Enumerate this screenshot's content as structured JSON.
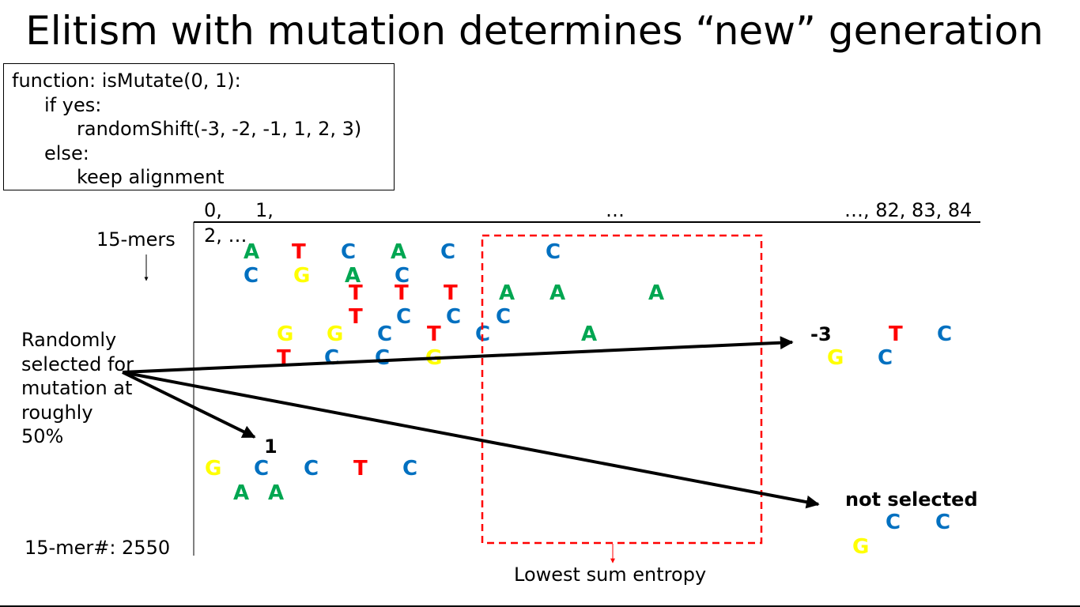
{
  "title": "Elitism with mutation determines “new” generation",
  "pseudocode": {
    "lines": [
      "function:  isMutate(0, 1):",
      "if yes:",
      "randomShift(-3, -2, -1, 1, 2, 3)",
      "else:",
      "keep alignment"
    ]
  },
  "positions": {
    "start": "0,",
    "one": "1,",
    "second_row": "2, …",
    "middle": "…",
    "end": "…, 82, 83, 84"
  },
  "labels": {
    "kmers": "15-mers",
    "random": [
      "Randomly",
      "selected for",
      "mutation at",
      "roughly",
      "50%"
    ],
    "count": "15-mer#: 2550",
    "lowest": "Lowest sum entropy",
    "shift_right": "-3",
    "shift_lower": "1",
    "not_selected": "not selected"
  },
  "colors": {
    "A": "#00a651",
    "T": "#ff0000",
    "C": "#0070c0",
    "G": "#ffff00",
    "dashed_box": "#ff0000"
  },
  "rows": [
    "A",
    "T",
    "C",
    "A",
    "C",
    "C",
    "C",
    "G",
    "A",
    "C",
    "T",
    "T",
    "T",
    "A",
    "A",
    "A",
    "T",
    "C",
    "C",
    "C",
    "G",
    "G",
    "C",
    "T",
    "C",
    "A",
    "T",
    "C",
    "C",
    "G"
  ],
  "right_bases": [
    "T",
    "C",
    "G",
    "C"
  ],
  "lower_bases": [
    "G",
    "C",
    "C",
    "T",
    "C",
    "A",
    "A"
  ],
  "not_selected_bases": [
    "C",
    "C",
    "G"
  ]
}
